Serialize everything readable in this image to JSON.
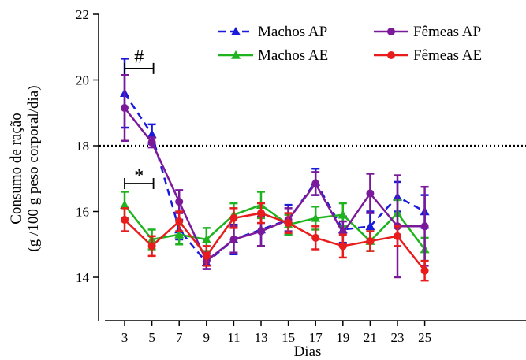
{
  "chart_data": {
    "type": "line",
    "title": "",
    "xlabel": "Dias",
    "ylabel_lines": [
      "Consumo de ração",
      "(g /100 g peso corporal/dia)"
    ],
    "x": [
      3,
      5,
      7,
      9,
      11,
      13,
      15,
      17,
      19,
      21,
      23,
      25
    ],
    "x_ticks": [
      "3",
      "5",
      "7",
      "9",
      "11",
      "13",
      "15",
      "17",
      "19",
      "21",
      "23",
      "25"
    ],
    "y_ticks": [
      "14",
      "16",
      "18",
      "20",
      "22"
    ],
    "ylim": [
      14,
      22
    ],
    "reference_line": {
      "y": 18,
      "style": "dotted"
    },
    "legend_placement": "top-right",
    "grid": false,
    "series": [
      {
        "name": "Machos AP",
        "color": "#1a1adc",
        "marker": "triangle",
        "dashed": true,
        "values": [
          19.6,
          18.35,
          15.45,
          14.45,
          15.15,
          15.45,
          15.75,
          16.9,
          15.45,
          15.55,
          16.45,
          16.0
        ],
        "errors": [
          1.05,
          0.3,
          0.3,
          0.2,
          0.45,
          0.5,
          0.45,
          0.4,
          0.4,
          0.45,
          0.45,
          0.5
        ]
      },
      {
        "name": "Machos AE",
        "color": "#1fb31f",
        "marker": "triangle",
        "dashed": false,
        "values": [
          16.2,
          15.15,
          15.3,
          15.15,
          15.9,
          16.2,
          15.6,
          15.8,
          15.9,
          15.1,
          15.95,
          14.85
        ],
        "errors": [
          0.4,
          0.3,
          0.3,
          0.35,
          0.35,
          0.4,
          0.3,
          0.35,
          0.35,
          0.3,
          0.4,
          0.35
        ]
      },
      {
        "name": "Fêmeas AP",
        "color": "#7a1a9a",
        "marker": "circle",
        "dashed": false,
        "values": [
          19.15,
          18.1,
          16.3,
          14.5,
          15.15,
          15.4,
          15.75,
          16.85,
          15.35,
          16.55,
          15.55,
          15.55
        ],
        "errors": [
          1.0,
          0.15,
          0.35,
          0.25,
          0.4,
          0.45,
          0.35,
          0.35,
          0.35,
          0.6,
          1.55,
          1.2
        ]
      },
      {
        "name": "Fêmeas AE",
        "color": "#e81c1c",
        "marker": "circle",
        "dashed": false,
        "values": [
          15.75,
          14.95,
          15.7,
          14.65,
          15.8,
          15.95,
          15.65,
          15.2,
          14.95,
          15.1,
          15.25,
          14.2
        ],
        "errors": [
          0.35,
          0.3,
          0.3,
          0.3,
          0.3,
          0.3,
          0.3,
          0.35,
          0.35,
          0.3,
          0.3,
          0.3
        ]
      }
    ],
    "annotations": [
      {
        "text": "#",
        "x_from": 3,
        "x_to": 5,
        "y": 20.35
      },
      {
        "text": "*",
        "x_from": 3,
        "x_to": 5,
        "y": 16.85
      }
    ]
  }
}
